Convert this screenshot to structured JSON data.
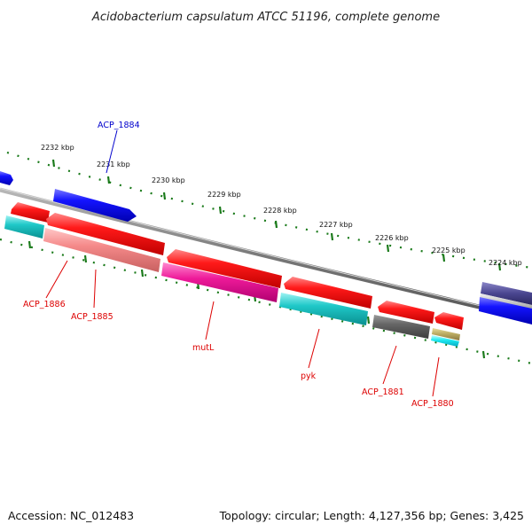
{
  "title": "Acidobacterium capsulatum ATCC 51196, complete genome",
  "accession": "Accession: NC_012483",
  "topology": "Topology: circular; Length: 4,127,356 bp; Genes: 3,425",
  "scale_labels": [
    "2232 kbp",
    "2231 kbp",
    "2230 kbp",
    "2229 kbp",
    "2228 kbp",
    "2227 kbp",
    "2226 kbp",
    "2225 kbp",
    "2224 kbp"
  ],
  "gene_labels": [
    {
      "text": "ACP_1884",
      "color": "#0000cc"
    },
    {
      "text": "ACP_1886",
      "color": "#dd0000"
    },
    {
      "text": "ACP_1885",
      "color": "#dd0000"
    },
    {
      "text": "mutL",
      "color": "#dd0000"
    },
    {
      "text": "pyk",
      "color": "#dd0000"
    },
    {
      "text": "ACP_1881",
      "color": "#dd0000"
    },
    {
      "text": "ACP_1880",
      "color": "#dd0000"
    }
  ],
  "colors": {
    "forward_cds": "#0000ee",
    "reverse_cds": "#ee0000",
    "backbone": "#888888",
    "scale_ticks": "#1a7a1a"
  }
}
